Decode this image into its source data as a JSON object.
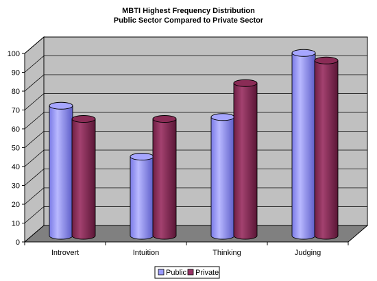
{
  "chart_data": {
    "type": "bar",
    "title": "MBTI Highest Frequency Distribution",
    "subtitle": "Public Sector Compared to Private Sector",
    "categories": [
      "Introvert",
      "Intuition",
      "Thinking",
      "Judging"
    ],
    "series": [
      {
        "name": "Public",
        "values": [
          69,
          42,
          63,
          97
        ],
        "color": "#9999ff"
      },
      {
        "name": "Private",
        "values": [
          62,
          62,
          81,
          93
        ],
        "color": "#993366"
      }
    ],
    "y_ticks": [
      "0",
      "10",
      "20",
      "30",
      "40",
      "50",
      "60",
      "70",
      "80",
      "90",
      "100"
    ],
    "ylim": [
      0,
      100
    ],
    "grid": true,
    "legend_position": "bottom-center",
    "wall_color": "#c0c0c0",
    "floor_color": "#808080"
  }
}
